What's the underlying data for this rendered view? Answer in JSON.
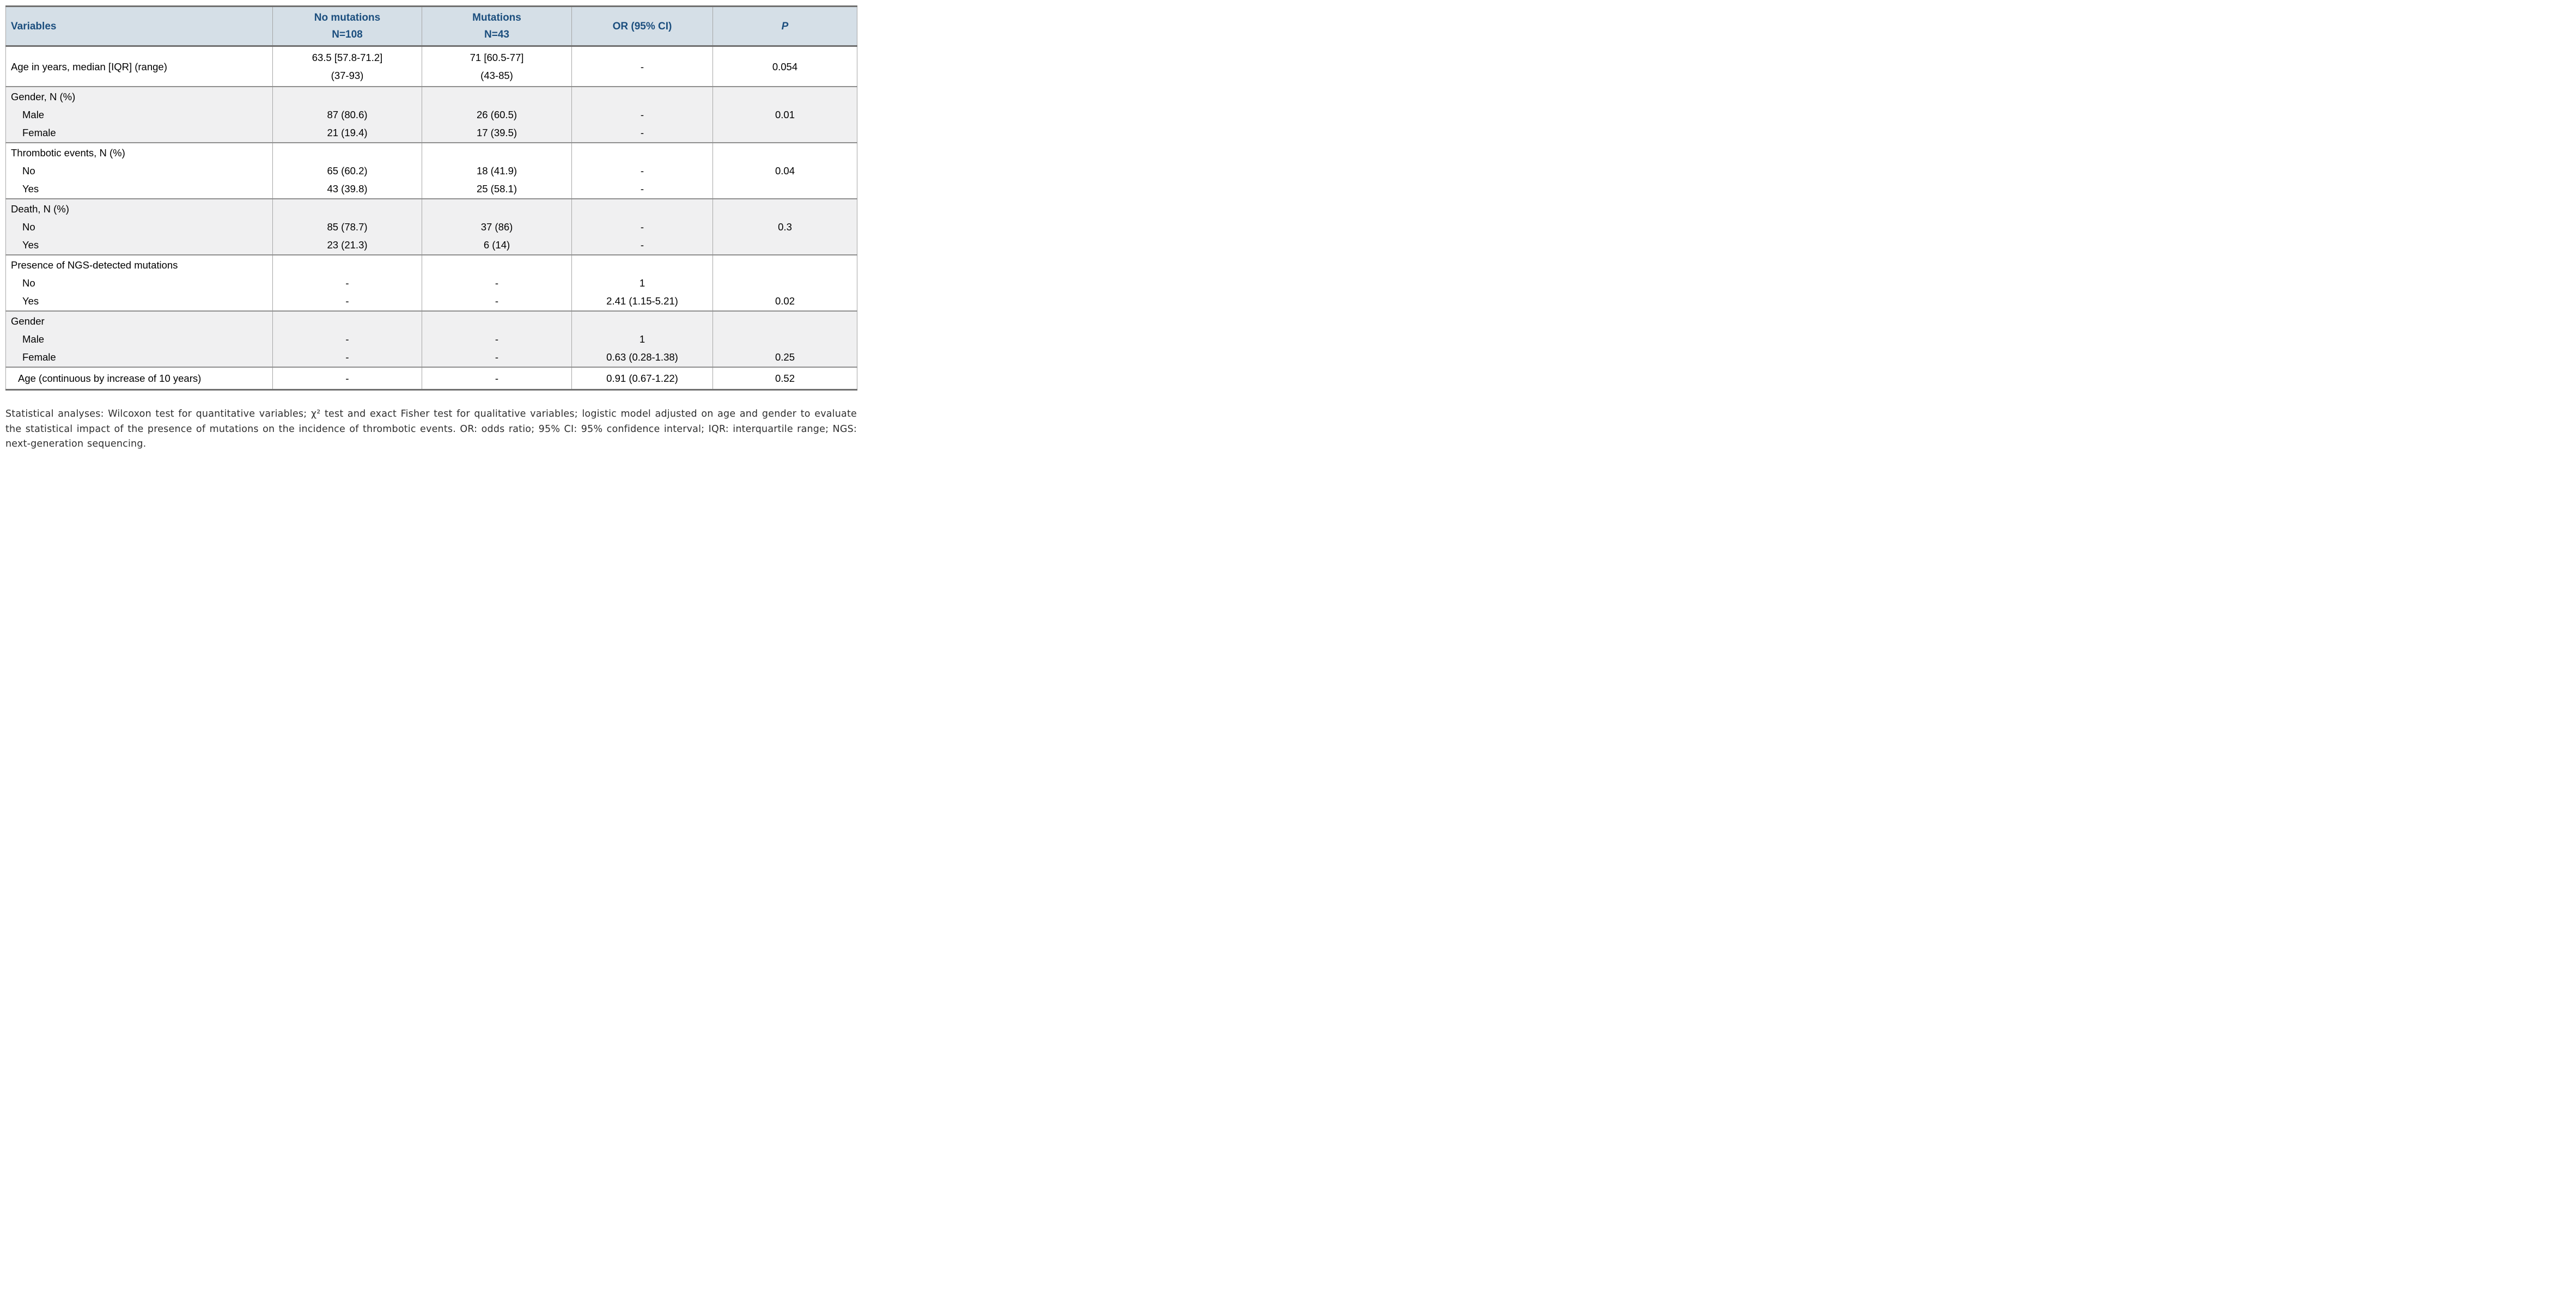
{
  "table": {
    "columns": [
      {
        "key": "variables",
        "label": "Variables"
      },
      {
        "key": "no_mutations",
        "label": "No mutations",
        "sublabel": "N=108"
      },
      {
        "key": "mutations",
        "label": "Mutations",
        "sublabel": "N=43"
      },
      {
        "key": "or",
        "label": "OR (95% CI)"
      },
      {
        "key": "p",
        "label": "P"
      }
    ],
    "rows": [
      {
        "type": "centered",
        "shade": "white",
        "indent": false,
        "cells": {
          "variables": [
            "Age in years, median [IQR] (range)"
          ],
          "no_mutations": [
            "63.5 [57.8-71.2]",
            "(37-93)"
          ],
          "mutations": [
            "71 [60.5-77]",
            "(43-85)"
          ],
          "or": [
            "-"
          ],
          "p": [
            "0.054"
          ]
        }
      },
      {
        "type": "grouped",
        "shade": "gray",
        "indent": false,
        "cells": {
          "variables": [
            "Gender, N (%)",
            "Male",
            "Female"
          ],
          "no_mutations": [
            "",
            "87 (80.6)",
            "21 (19.4)"
          ],
          "mutations": [
            "",
            "26 (60.5)",
            "17 (39.5)"
          ],
          "or": [
            "",
            "-",
            "-"
          ],
          "p": [
            "",
            "0.01",
            ""
          ]
        }
      },
      {
        "type": "grouped",
        "shade": "white",
        "indent": false,
        "cells": {
          "variables": [
            "Thrombotic events, N (%)",
            "No",
            "Yes"
          ],
          "no_mutations": [
            "",
            "65 (60.2)",
            "43 (39.8)"
          ],
          "mutations": [
            "",
            "18 (41.9)",
            "25 (58.1)"
          ],
          "or": [
            "",
            "-",
            "-"
          ],
          "p": [
            "",
            "0.04",
            ""
          ]
        }
      },
      {
        "type": "grouped",
        "shade": "gray",
        "indent": false,
        "cells": {
          "variables": [
            "Death, N (%)",
            "No",
            "Yes"
          ],
          "no_mutations": [
            "",
            "85 (78.7)",
            "23 (21.3)"
          ],
          "mutations": [
            "",
            "37 (86)",
            "6 (14)"
          ],
          "or": [
            "",
            "-",
            "-"
          ],
          "p": [
            "",
            "0.3",
            ""
          ]
        }
      },
      {
        "type": "grouped",
        "shade": "white",
        "indent": false,
        "cells": {
          "variables": [
            "Presence of NGS-detected mutations",
            "No",
            "Yes"
          ],
          "no_mutations": [
            "",
            "-",
            "-"
          ],
          "mutations": [
            "",
            "-",
            "-"
          ],
          "or": [
            "",
            "1",
            "2.41 (1.15-5.21)"
          ],
          "p": [
            "",
            "",
            "0.02"
          ]
        }
      },
      {
        "type": "grouped",
        "shade": "gray",
        "indent": false,
        "cells": {
          "variables": [
            "Gender",
            "Male",
            "Female"
          ],
          "no_mutations": [
            "",
            "-",
            "-"
          ],
          "mutations": [
            "",
            "-",
            "-"
          ],
          "or": [
            "",
            "1",
            "0.63 (0.28-1.38)"
          ],
          "p": [
            "",
            "",
            "0.25"
          ]
        }
      },
      {
        "type": "centered",
        "shade": "white",
        "indent": true,
        "cells": {
          "variables": [
            "Age (continuous by increase of 10 years)"
          ],
          "no_mutations": [
            "-"
          ],
          "mutations": [
            "-"
          ],
          "or": [
            "0.91 (0.67-1.22)"
          ],
          "p": [
            "0.52"
          ]
        }
      }
    ]
  },
  "footnote": "Statistical analyses: Wilcoxon test for quantitative variables; χ² test and exact Fisher test for qualitative variables; logistic model adjusted on age and gender to evaluate the statistical impact of the presence of mutations on the incidence of thrombotic events. OR: odds ratio; 95% CI: 95% confidence interval; IQR: interquartile range; NGS: next-generation sequencing."
}
